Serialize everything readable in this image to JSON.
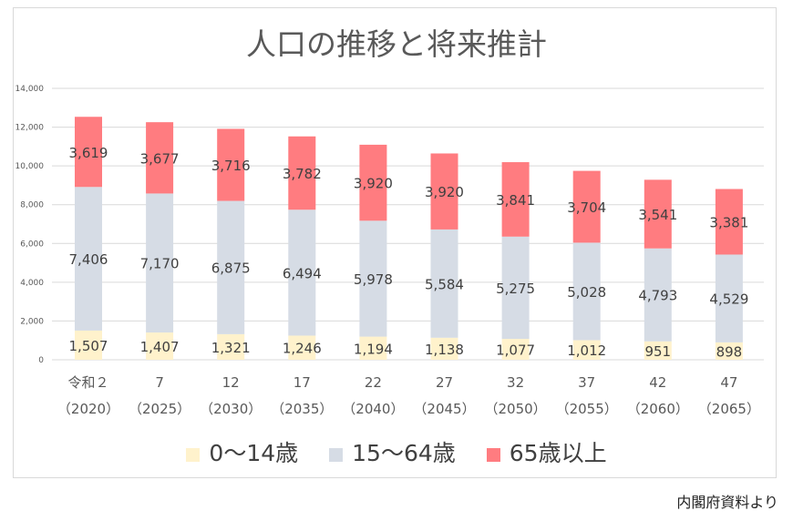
{
  "chart_data": {
    "type": "bar",
    "stacked": true,
    "title": "人口の推移と将来推計",
    "categories": [
      "令和２",
      "7",
      "12",
      "17",
      "22",
      "27",
      "32",
      "37",
      "42",
      "47"
    ],
    "category_years": [
      "（2020）",
      "（2025）",
      "（2030）",
      "（2035）",
      "（2040）",
      "（2045）",
      "（2050）",
      "（2055）",
      "（2060）",
      "（2065）"
    ],
    "series": [
      {
        "name": "0～14歳",
        "color": "#fff2cc",
        "values": [
          1507,
          1407,
          1321,
          1246,
          1194,
          1138,
          1077,
          1012,
          951,
          898
        ]
      },
      {
        "name": "15～64歳",
        "color": "#d6dce5",
        "values": [
          7406,
          7170,
          6875,
          6494,
          5978,
          5584,
          5275,
          5028,
          4793,
          4529
        ]
      },
      {
        "name": "65歳以上",
        "color": "#ff7c80",
        "values": [
          3619,
          3677,
          3716,
          3782,
          3920,
          3920,
          3841,
          3704,
          3541,
          3381
        ]
      }
    ],
    "yticks": [
      0,
      2000,
      4000,
      6000,
      8000,
      10000,
      12000,
      14000
    ],
    "ylim": [
      0,
      14000
    ],
    "grid": true,
    "legend": "bottom"
  },
  "source": "内閣府資料より"
}
